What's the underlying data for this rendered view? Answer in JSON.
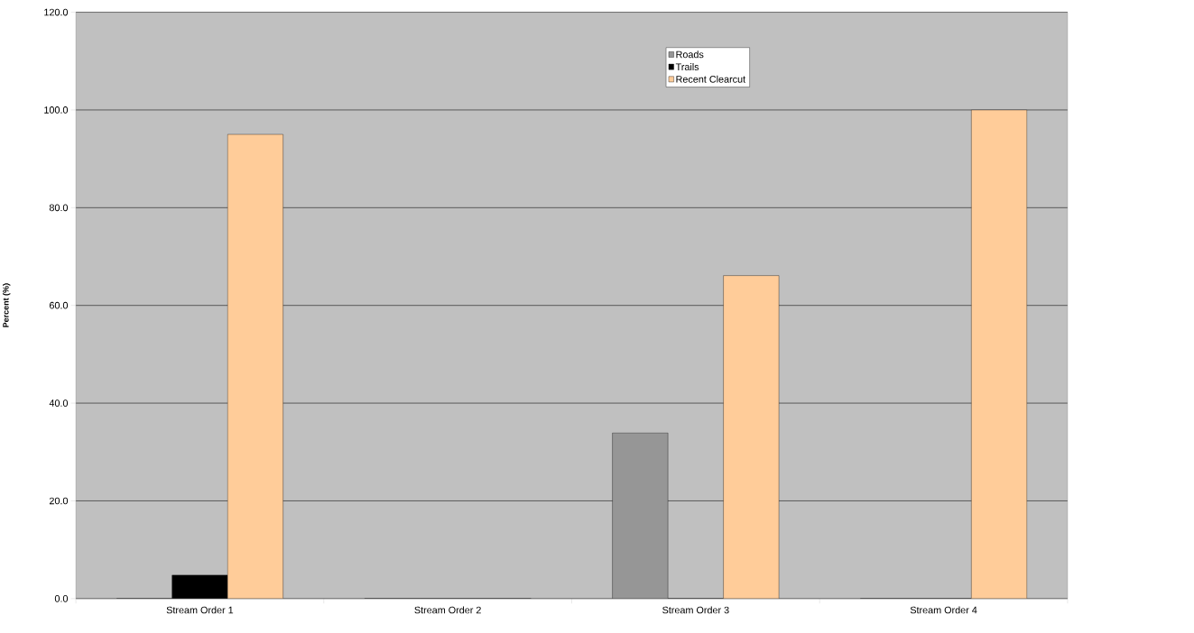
{
  "chart_data": {
    "type": "bar",
    "ylabel": "**Percent (%)**",
    "categories": [
      "Stream Order 1",
      "Stream Order 2",
      "Stream Order 3",
      "Stream Order 4"
    ],
    "series": [
      {
        "name": "Roads",
        "color": "#969696",
        "values": [
          0,
          0,
          33.9,
          0
        ]
      },
      {
        "name": "Trails",
        "color": "#000000",
        "values": [
          4.8,
          0,
          0,
          0
        ]
      },
      {
        "name": "Recent Clearcut",
        "color": "#ffcc99",
        "values": [
          95.0,
          0,
          66.1,
          100.0
        ]
      }
    ],
    "ylim": [
      0,
      120
    ],
    "yticks": [
      {
        "value": 0,
        "label": "0.0"
      },
      {
        "value": 20,
        "label": "20.0"
      },
      {
        "value": 40,
        "label": "40.0"
      },
      {
        "value": 60,
        "label": "60.0"
      },
      {
        "value": 80,
        "label": "80.0"
      },
      {
        "value": 100,
        "label": "100.0"
      },
      {
        "value": 120,
        "label": "120.0"
      }
    ],
    "grid": "y",
    "legend": "top right"
  }
}
